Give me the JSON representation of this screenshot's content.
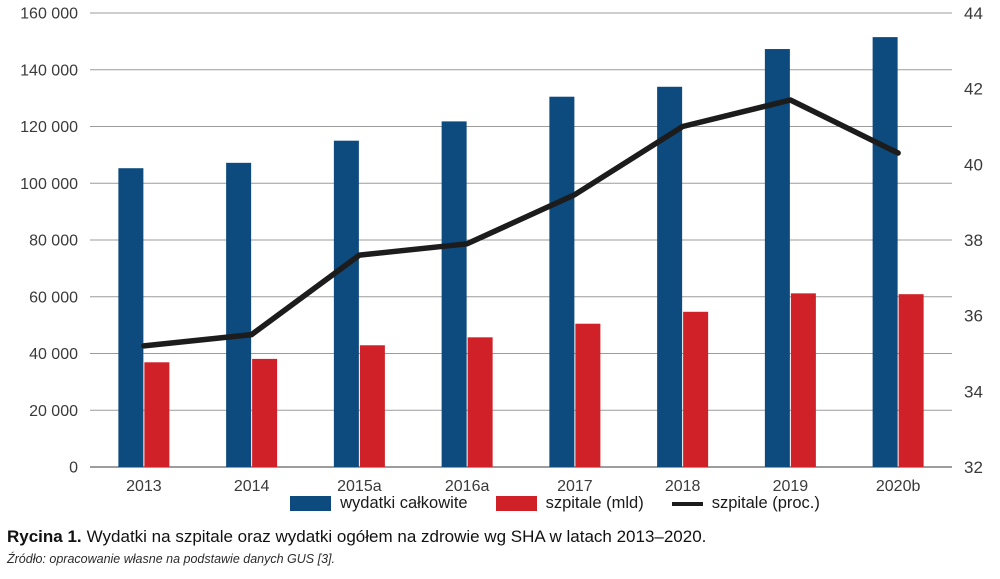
{
  "figure": {
    "caption_label": "Rycina 1.",
    "caption_text": "Wydatki na szpitale oraz wydatki ogółem na zdrowie wg SHA w latach 2013–2020.",
    "source": "Źródło: opracowanie własne na podstawie danych GUS [3]."
  },
  "legend": {
    "items": [
      {
        "label": "wydatki całkowite",
        "swatch": "bar",
        "color": "#0d4a7e"
      },
      {
        "label": "szpitale (mld)",
        "swatch": "bar",
        "color": "#cf2127"
      },
      {
        "label": "szpitale (proc.)",
        "swatch": "line",
        "color": "#1c1c1c"
      }
    ]
  },
  "chart_data": {
    "type": "bar",
    "subtype": "grouped bars with secondary-axis line",
    "categories": [
      "2013",
      "2014",
      "2015a",
      "2016a",
      "2017",
      "2018",
      "2019",
      "2020b"
    ],
    "series": [
      {
        "name": "wydatki całkowite",
        "type": "bar",
        "axis": "left",
        "color": "#0d4a7e",
        "values": [
          105300,
          107200,
          115000,
          121800,
          130500,
          134000,
          147300,
          151500
        ]
      },
      {
        "name": "szpitale (mld)",
        "type": "bar",
        "axis": "left",
        "color": "#cf2127",
        "values": [
          36900,
          38100,
          42900,
          45700,
          50500,
          54700,
          61200,
          60900
        ]
      },
      {
        "name": "szpitale (proc.)",
        "type": "line",
        "axis": "right",
        "color": "#1c1c1c",
        "values": [
          35.2,
          35.5,
          37.6,
          37.9,
          39.2,
          41.0,
          41.7,
          40.3
        ]
      }
    ],
    "left_axis": {
      "min": 0,
      "max": 160000,
      "step": 20000,
      "tick_labels": [
        "0",
        "20 000",
        "40 000",
        "60 000",
        "80 000",
        "100 000",
        "120 000",
        "140 000",
        "160 000"
      ]
    },
    "right_axis": {
      "min": 32,
      "max": 44,
      "step": 2,
      "tick_labels": [
        "32",
        "34",
        "36",
        "38",
        "40",
        "42",
        "44"
      ]
    },
    "grid": "horizontal gridlines on, every 20 000 (left axis)",
    "legend_position": "bottom",
    "title": "",
    "xlabel": "",
    "ylabel": ""
  },
  "colors": {
    "bar_blue": "#0d4a7e",
    "bar_red": "#cf2127",
    "line_black": "#1c1c1c",
    "gridline": "#9b9b9b",
    "axis_baseline": "#7d7d7d",
    "tick_text": "#3a3a3a",
    "background": "#ffffff"
  }
}
